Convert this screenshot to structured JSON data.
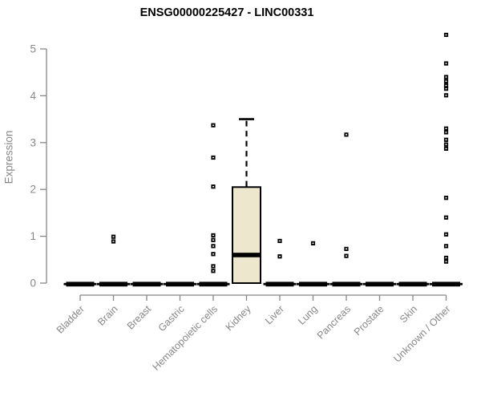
{
  "title": "ENSG00000225427 - LINC00331",
  "chart_data": {
    "type": "boxplot",
    "title": "ENSG00000225427 - LINC00331",
    "xlabel": "",
    "ylabel": "Expression",
    "ylim": [
      0,
      5
    ],
    "yticks": [
      0,
      1,
      2,
      3,
      4,
      5
    ],
    "grid": false,
    "legend": "none",
    "colors": {
      "box_fill": "#EDE8CD",
      "box_stroke": "#000000",
      "median": "#000000",
      "outlier": "#000000",
      "axis": "#878787",
      "tick_label": "#878787",
      "title": "#000000"
    },
    "categories": [
      "Bladder",
      "Brain",
      "Breast",
      "Gastric",
      "Hematopoietic cells",
      "Kidney",
      "Liver",
      "Lung",
      "Pancreas",
      "Prostate",
      "Skin",
      "Unknown / Other"
    ],
    "boxes": [
      {
        "category": "Bladder",
        "whisker_low": 0,
        "q1": 0,
        "median": 0,
        "q3": 0,
        "whisker_high": 0,
        "outliers": []
      },
      {
        "category": "Brain",
        "whisker_low": 0,
        "q1": 0,
        "median": 0,
        "q3": 0,
        "whisker_high": 0,
        "outliers": [
          0.99,
          0.89
        ]
      },
      {
        "category": "Breast",
        "whisker_low": 0,
        "q1": 0,
        "median": 0,
        "q3": 0,
        "whisker_high": 0,
        "outliers": []
      },
      {
        "category": "Gastric",
        "whisker_low": 0,
        "q1": 0,
        "median": 0,
        "q3": 0,
        "whisker_high": 0,
        "outliers": []
      },
      {
        "category": "Hematopoietic cells",
        "whisker_low": 0,
        "q1": 0,
        "median": 0,
        "q3": 0,
        "whisker_high": 0,
        "outliers": [
          3.37,
          2.68,
          2.06,
          1.02,
          0.92,
          0.79,
          0.62,
          0.36,
          0.26
        ]
      },
      {
        "category": "Kidney",
        "whisker_low": 0,
        "q1": 0,
        "median": 0.6,
        "q3": 2.05,
        "whisker_high": 3.5,
        "outliers": []
      },
      {
        "category": "Liver",
        "whisker_low": 0,
        "q1": 0,
        "median": 0,
        "q3": 0,
        "whisker_high": 0,
        "outliers": [
          0.9,
          0.57
        ]
      },
      {
        "category": "Lung",
        "whisker_low": 0,
        "q1": 0,
        "median": 0,
        "q3": 0,
        "whisker_high": 0,
        "outliers": [
          0.85
        ]
      },
      {
        "category": "Pancreas",
        "whisker_low": 0,
        "q1": 0,
        "median": 0,
        "q3": 0,
        "whisker_high": 0,
        "outliers": [
          3.17,
          0.73,
          0.58
        ]
      },
      {
        "category": "Prostate",
        "whisker_low": 0,
        "q1": 0,
        "median": 0,
        "q3": 0,
        "whisker_high": 0,
        "outliers": []
      },
      {
        "category": "Skin",
        "whisker_low": 0,
        "q1": 0,
        "median": 0,
        "q3": 0,
        "whisker_high": 0,
        "outliers": []
      },
      {
        "category": "Unknown / Other",
        "whisker_low": 0,
        "q1": 0,
        "median": 0,
        "q3": 0,
        "whisker_high": 0,
        "outliers": [
          5.3,
          4.69,
          4.4,
          4.31,
          4.22,
          4.15,
          4.01,
          3.3,
          3.22,
          3.06,
          2.96,
          2.87,
          1.82,
          1.4,
          1.04,
          0.79,
          0.54,
          0.46
        ]
      }
    ]
  }
}
